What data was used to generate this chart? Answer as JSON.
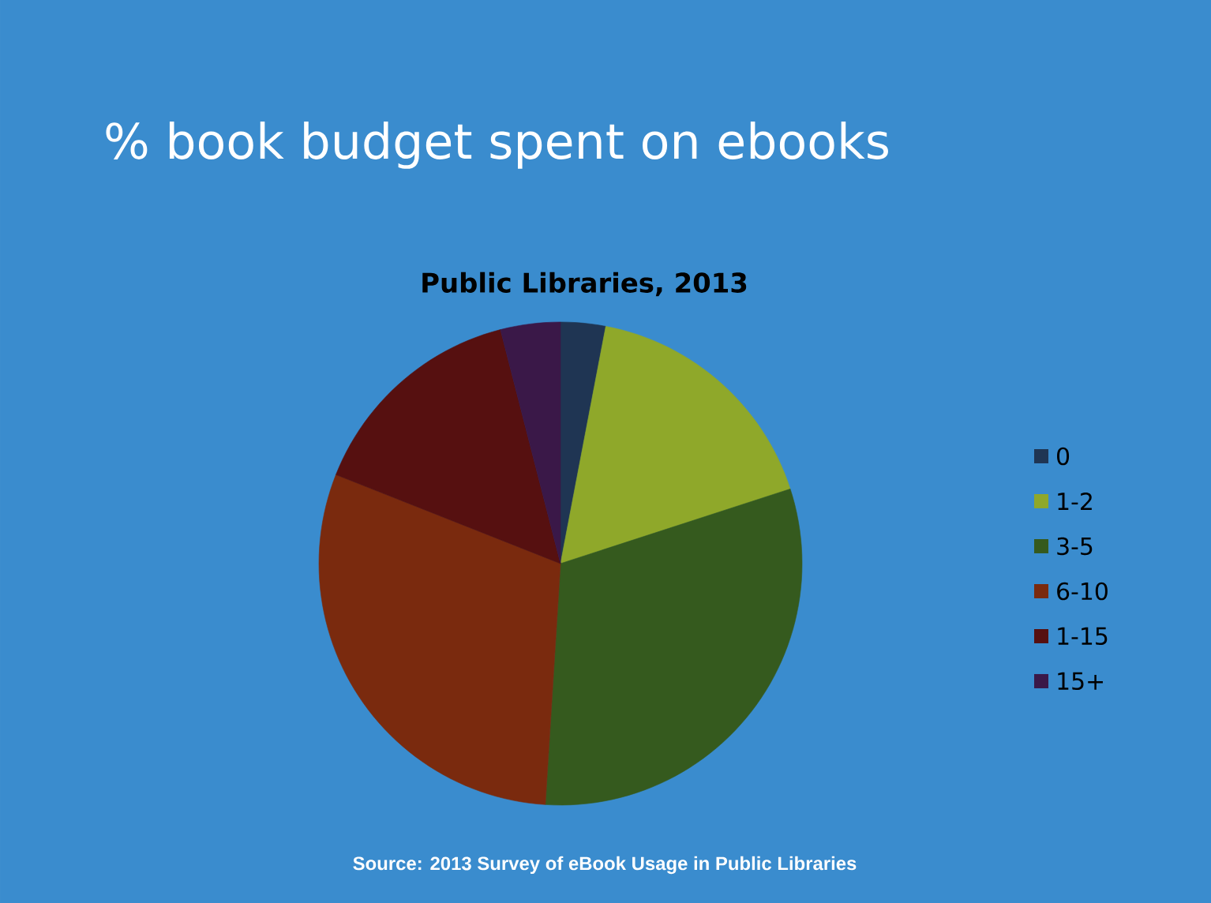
{
  "chart_data": {
    "type": "pie",
    "title": "% book budget spent on ebooks",
    "subtitle": "Public Libraries, 2013",
    "categories": [
      "0",
      "1-2",
      "3-5",
      "6-10",
      "1-15",
      "15+"
    ],
    "values": [
      3,
      17,
      31,
      30,
      15,
      4
    ],
    "colors": [
      "#1f3553",
      "#8fa82a",
      "#355a1e",
      "#7a2a0e",
      "#561010",
      "#3a1848"
    ],
    "legend": "right",
    "annotations": [
      "Source:  2013 Survey of eBook Usage in Public Libraries"
    ]
  }
}
